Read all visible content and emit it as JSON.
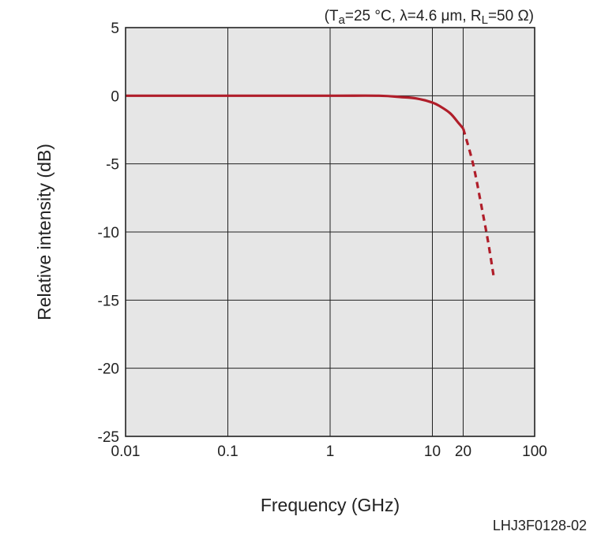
{
  "conditions": {
    "open": "(T",
    "ta_sub": "a",
    "ta_rest": "=25 °C, λ=4.6 μm, R",
    "rl_sub": "L",
    "close": "=50 Ω)"
  },
  "figure_code": "LHJ3F0128-02",
  "chart_data": {
    "type": "line",
    "title": "",
    "xlabel": "Frequency (GHz)",
    "ylabel": "Relative intensity (dB)",
    "xscale": "log",
    "xlim": [
      0.01,
      100
    ],
    "ylim": [
      -25,
      5
    ],
    "x_ticks": [
      {
        "value": 0.01,
        "label": "0.01"
      },
      {
        "value": 0.1,
        "label": "0.1"
      },
      {
        "value": 1,
        "label": "1"
      },
      {
        "value": 10,
        "label": "10"
      },
      {
        "value": 20,
        "label": "20"
      },
      {
        "value": 100,
        "label": "100"
      }
    ],
    "y_ticks": [
      {
        "value": 5,
        "label": "5"
      },
      {
        "value": 0,
        "label": "0"
      },
      {
        "value": -5,
        "label": "-5"
      },
      {
        "value": -10,
        "label": "-10"
      },
      {
        "value": -15,
        "label": "-15"
      },
      {
        "value": -20,
        "label": "-20"
      },
      {
        "value": -25,
        "label": "-25"
      }
    ],
    "grid": true,
    "background": "#e6e6e6",
    "series": [
      {
        "style": "solid",
        "color": "#b01e2a",
        "points": [
          [
            0.01,
            0
          ],
          [
            0.1,
            0
          ],
          [
            1,
            0
          ],
          [
            3,
            0
          ],
          [
            5,
            -0.1
          ],
          [
            7,
            -0.2
          ],
          [
            10,
            -0.5
          ],
          [
            12,
            -0.8
          ],
          [
            15,
            -1.3
          ],
          [
            18,
            -2.0
          ],
          [
            20,
            -2.4
          ]
        ]
      },
      {
        "style": "dashed",
        "color": "#b01e2a",
        "points": [
          [
            20,
            -2.4
          ],
          [
            25,
            -5.0
          ],
          [
            30,
            -8.0
          ],
          [
            35,
            -10.7
          ],
          [
            40,
            -13.4
          ]
        ]
      }
    ]
  }
}
